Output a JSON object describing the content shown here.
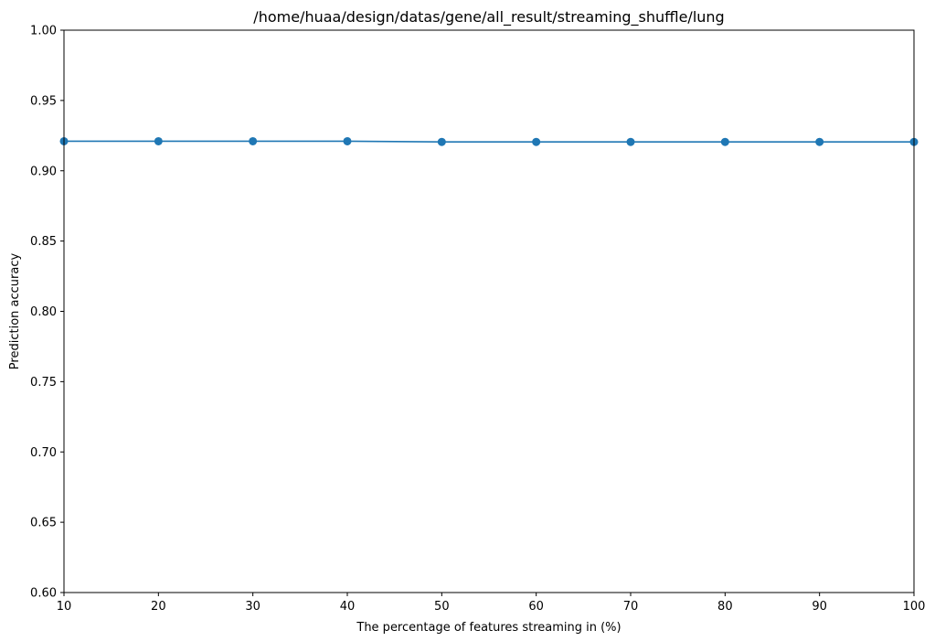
{
  "chart_data": {
    "type": "line",
    "title": "/home/huaa/design/datas/gene/all_result/streaming_shuffle/lung",
    "xlabel": "The percentage of features streaming in (%)",
    "ylabel": "Prediction accuracy",
    "x": [
      10,
      20,
      30,
      40,
      50,
      60,
      70,
      80,
      90,
      100
    ],
    "series": [
      {
        "values": [
          0.921,
          0.921,
          0.921,
          0.921,
          0.9205,
          0.9205,
          0.9205,
          0.9205,
          0.9205,
          0.9205
        ],
        "color": "#1f77b4",
        "marker": "circle"
      }
    ],
    "xlim": [
      10,
      100
    ],
    "ylim": [
      0.6,
      1.0
    ],
    "xticks": [
      10,
      20,
      30,
      40,
      50,
      60,
      70,
      80,
      90,
      100
    ],
    "xtick_labels": [
      "10",
      "20",
      "30",
      "40",
      "50",
      "60",
      "70",
      "80",
      "90",
      "100"
    ],
    "yticks": [
      0.6,
      0.65,
      0.7,
      0.75,
      0.8,
      0.85,
      0.9,
      0.95,
      1.0
    ],
    "ytick_labels": [
      "0.60",
      "0.65",
      "0.70",
      "0.75",
      "0.80",
      "0.85",
      "0.90",
      "0.95",
      "1.00"
    ],
    "grid": false,
    "legend": "none"
  }
}
